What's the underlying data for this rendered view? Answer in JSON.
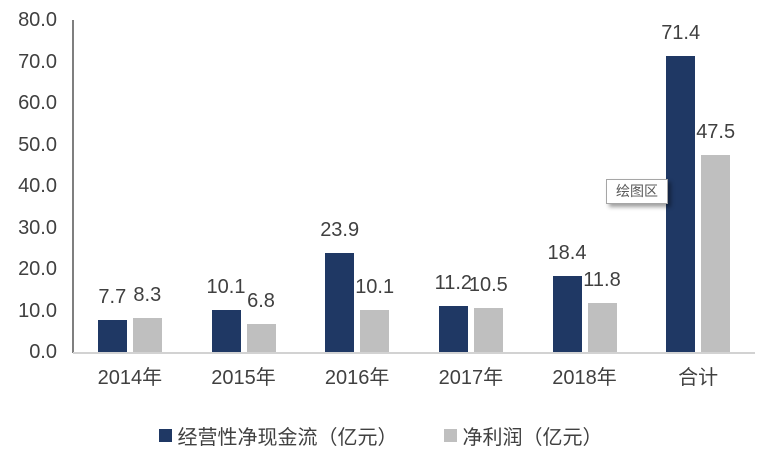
{
  "chart_data": {
    "type": "bar",
    "title": "",
    "xlabel": "",
    "ylabel": "",
    "categories": [
      "2014年",
      "2015年",
      "2016年",
      "2017年",
      "2018年",
      "合计"
    ],
    "series": [
      {
        "key": "operating-net-cash-flow",
        "name": "经营性净现金流（亿元）",
        "color": "#1F3864",
        "values": [
          7.7,
          10.1,
          23.9,
          11.2,
          18.4,
          71.4
        ]
      },
      {
        "key": "net-profit",
        "name": "净利润（亿元）",
        "color": "#BFBFBF",
        "values": [
          8.3,
          6.8,
          10.1,
          10.5,
          11.8,
          47.5
        ]
      }
    ],
    "ylim": [
      0,
      80
    ],
    "ytick_interval": 10,
    "ytick_labels": [
      "0.0",
      "10.0",
      "20.0",
      "30.0",
      "40.0",
      "50.0",
      "60.0",
      "70.0",
      "80.0"
    ],
    "grid": false,
    "legend_position": "bottom",
    "data_labels": true,
    "value_decimals": 1,
    "axis_colors": {
      "y_axis_line": "#7F7F7F",
      "x_axis_line": "#D2D2D2",
      "tick_text": "#404040"
    }
  },
  "tooltip": {
    "label": "绘图区"
  }
}
